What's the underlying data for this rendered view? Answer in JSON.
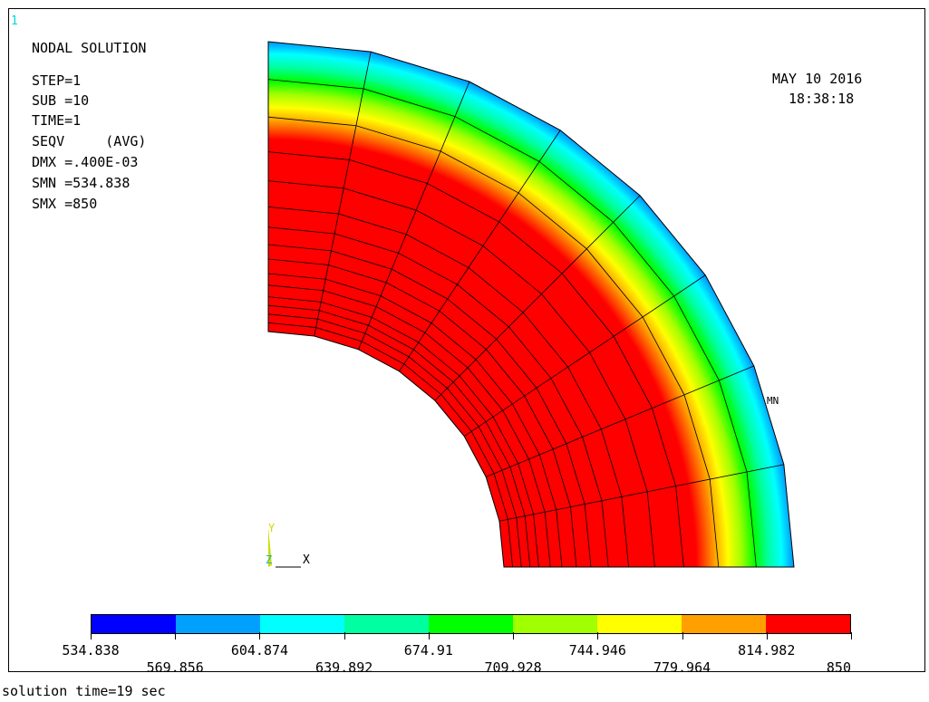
{
  "window_number": "1",
  "solution_info": {
    "title": "NODAL SOLUTION",
    "lines": [
      "STEP=1",
      "SUB =10",
      "TIME=1",
      "SEQV     (AVG)",
      "DMX =.400E-03",
      "SMN =534.838",
      "SMX =850"
    ]
  },
  "timestamp": {
    "date": "MAY 10 2016",
    "time": "18:38:18"
  },
  "plot": {
    "min_marker": "MN",
    "axis_labels": {
      "y": "Y",
      "x": "X",
      "z": "Z"
    },
    "colors": {
      "min": "#0000ff",
      "max": "#ff0000",
      "mesh_line": "#000000"
    }
  },
  "legend": {
    "colors": [
      "#0000ff",
      "#00a0ff",
      "#00ffff",
      "#00ffa0",
      "#00ff00",
      "#a0ff00",
      "#ffff00",
      "#ffa000",
      "#ff0000"
    ],
    "labels_top": [
      "534.838",
      "604.874",
      "674.91",
      "744.946",
      "814.982"
    ],
    "labels_bottom": [
      "569.856",
      "639.892",
      "709.928",
      "779.964",
      "850"
    ]
  },
  "status_text": "solution time=19 sec"
}
